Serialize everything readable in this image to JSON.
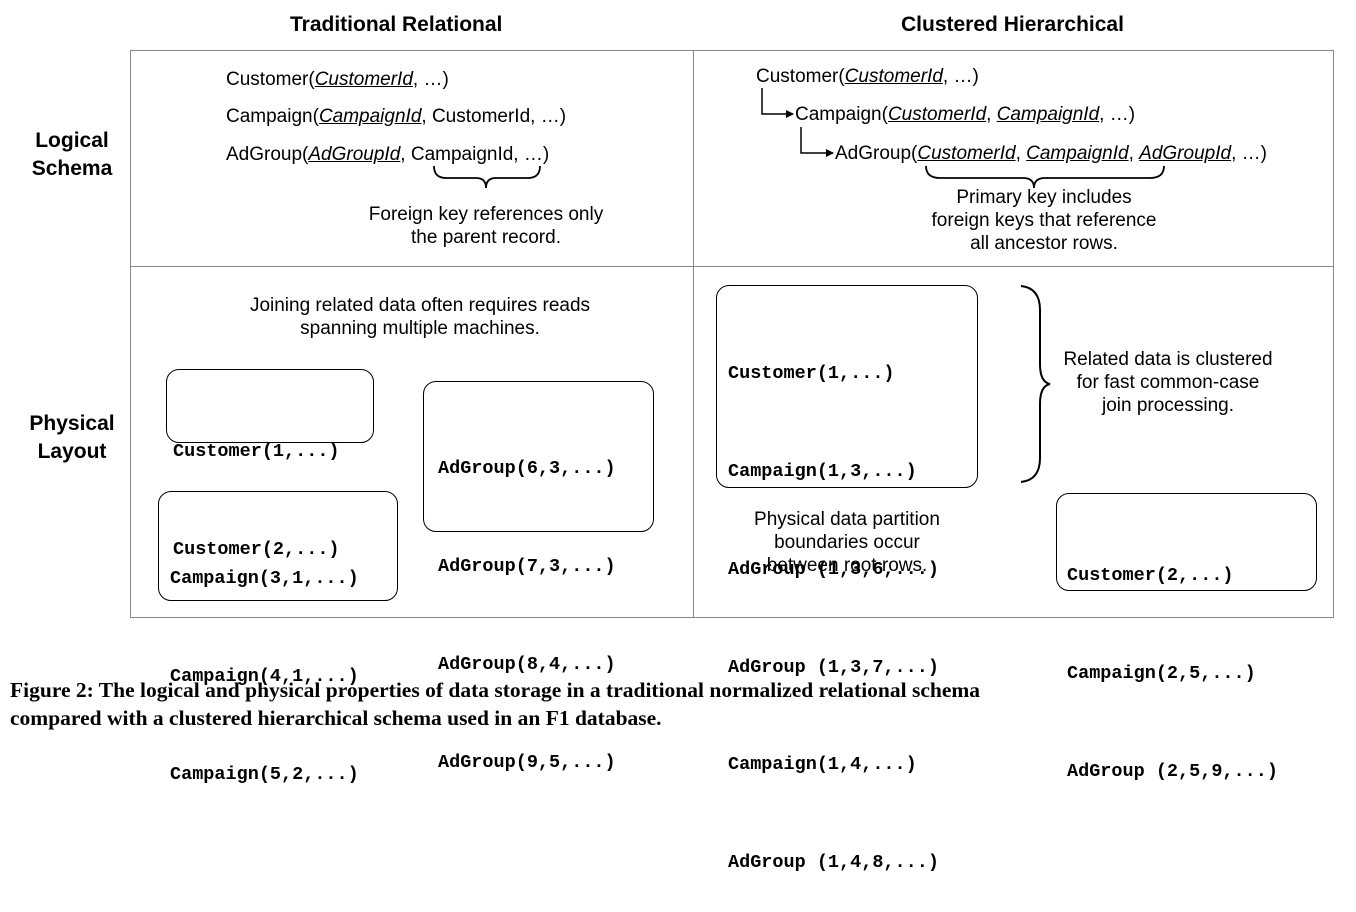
{
  "columns": {
    "left_title": "Traditional Relational",
    "right_title": "Clustered Hierarchical"
  },
  "rows": {
    "logical": [
      "Logical",
      "Schema"
    ],
    "physical": [
      "Physical",
      "Layout"
    ]
  },
  "relational_schema": {
    "customer": {
      "name": "Customer(",
      "key": "CustomerId",
      "rest": ", …)"
    },
    "campaign": {
      "name": "Campaign(",
      "key": "CampaignId",
      "rest": ", CustomerId, …)"
    },
    "adgroup": {
      "name": "AdGroup(",
      "key": "AdGroupId",
      "sep": ", ",
      "fk": "CampaignId",
      "rest": ", …)"
    },
    "note": [
      "Foreign key references only",
      "the parent record."
    ]
  },
  "hierarchical_schema": {
    "customer": {
      "name": "Customer(",
      "key": "CustomerId",
      "rest": ", …)"
    },
    "campaign": {
      "name": "Campaign(",
      "k1": "CustomerId",
      "sep1": ", ",
      "k2": "CampaignId",
      "rest": ", …)"
    },
    "adgroup": {
      "name": "AdGroup(",
      "k1": "CustomerId",
      "sep1": ", ",
      "k2": "CampaignId",
      "sep2": ", ",
      "k3": "AdGroupId",
      "rest": ", …)"
    },
    "note": [
      "Primary key includes",
      "foreign keys that reference",
      "all ancestor rows."
    ]
  },
  "relational_physical": {
    "note": [
      "Joining related data often requires reads",
      "spanning multiple machines."
    ],
    "customer_box": [
      "Customer(1,...)",
      "Customer(2,...)"
    ],
    "campaign_box": [
      "Campaign(3,1,...)",
      "Campaign(4,1,...)",
      "Campaign(5,2,...)"
    ],
    "adgroup_box": [
      "AdGroup(6,3,...)",
      "AdGroup(7,3,...)",
      "AdGroup(8,4,...)",
      "AdGroup(9,5,...)"
    ]
  },
  "hierarchical_physical": {
    "box1": [
      "Customer(1,...)",
      "Campaign(1,3,...)",
      "AdGroup (1,3,6,...)",
      "AdGroup (1,3,7,...)",
      "Campaign(1,4,...)",
      "AdGroup (1,4,8,...)"
    ],
    "box2": [
      "Customer(2,...)",
      "Campaign(2,5,...)",
      "AdGroup (2,5,9,...)"
    ],
    "cluster_note": [
      "Related data is clustered",
      "for fast common-case",
      "join processing."
    ],
    "partition_note": [
      "Physical data partition",
      "boundaries occur",
      "between root rows."
    ]
  },
  "caption": [
    "Figure 2: The logical and physical properties of data storage in a traditional normalized relational schema",
    "compared with a clustered hierarchical schema used in an F1 database."
  ]
}
